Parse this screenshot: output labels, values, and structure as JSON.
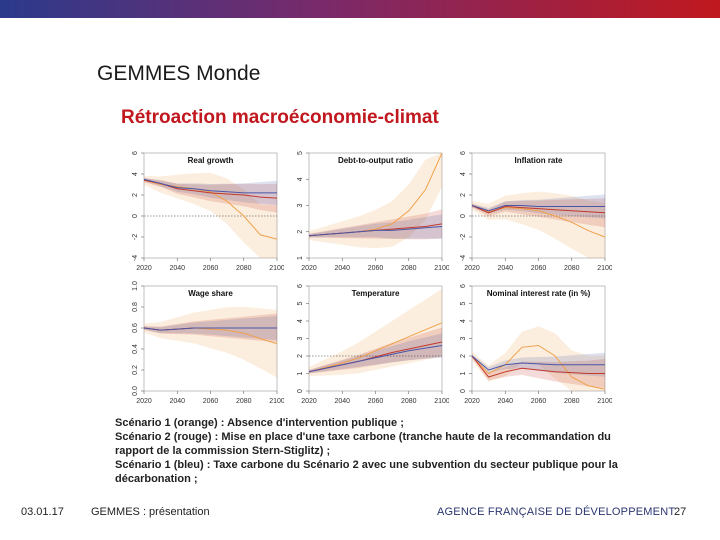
{
  "slide": {
    "title": "GEMMES Monde",
    "subtitle": "Rétroaction macroéconomie-climat",
    "caption_lines": [
      "Scénario 1 (orange) : Absence d'intervention publique ;",
      "Scénario 2 (rouge) : Mise en place d'une taxe carbone (tranche haute de la recommandation du",
      "rapport de la commission Stern-Stiglitz) ;",
      "Scénario 1 (bleu) : Taxe carbone du Scénario 2 avec une subvention du secteur publique pour la",
      "décarbonation ;"
    ],
    "footer": {
      "date": "03.01.17",
      "presentation": "GEMMES : présentation",
      "organization": "AGENCE FRANÇAISE DE DÉVELOPPEMENT",
      "page_number": "27"
    }
  },
  "colors": {
    "orange": "#f0a04a",
    "red": "#c0392b",
    "blue": "#4a56a8",
    "title_red": "#c0181e",
    "bar_start": "#2b3a8c",
    "bar_end": "#c0181e"
  },
  "chart_data": [
    {
      "type": "line",
      "title": "Real growth",
      "x": [
        2020,
        2030,
        2040,
        2050,
        2060,
        2070,
        2080,
        2090,
        2100
      ],
      "xticks": [
        "2020",
        "2040",
        "2060",
        "2080",
        "2100"
      ],
      "ylim": [
        -4,
        6
      ],
      "yticks": [
        "-4",
        "-2",
        "0",
        "2",
        "4",
        "6"
      ],
      "reference_line": 0,
      "series": [
        {
          "color": "orange",
          "values": [
            3.4,
            3.0,
            2.8,
            2.6,
            2.3,
            1.4,
            0.0,
            -1.8,
            -2.2
          ]
        },
        {
          "color": "red",
          "values": [
            3.4,
            3.1,
            2.6,
            2.4,
            2.2,
            2.1,
            2.0,
            1.8,
            1.7
          ]
        },
        {
          "color": "blue",
          "values": [
            3.5,
            3.1,
            2.7,
            2.6,
            2.4,
            2.3,
            2.2,
            2.2,
            2.2
          ]
        }
      ]
    },
    {
      "type": "line",
      "title": "Debt-to-output ratio",
      "x": [
        2020,
        2030,
        2040,
        2050,
        2060,
        2070,
        2080,
        2090,
        2100
      ],
      "xticks": [
        "2020",
        "2040",
        "2060",
        "2080",
        "2100"
      ],
      "ylim": [
        1,
        5
      ],
      "yticks": [
        "1",
        "2",
        "3",
        "4",
        "5"
      ],
      "series": [
        {
          "color": "orange",
          "values": [
            1.85,
            1.9,
            1.95,
            2.0,
            2.1,
            2.3,
            2.8,
            3.6,
            5.0
          ]
        },
        {
          "color": "red",
          "values": [
            1.85,
            1.9,
            1.95,
            2.0,
            2.05,
            2.1,
            2.15,
            2.2,
            2.3
          ]
        },
        {
          "color": "blue",
          "values": [
            1.85,
            1.9,
            1.95,
            2.0,
            2.05,
            2.05,
            2.1,
            2.15,
            2.2
          ]
        }
      ]
    },
    {
      "type": "line",
      "title": "Inflation rate",
      "x": [
        2020,
        2030,
        2040,
        2050,
        2060,
        2070,
        2080,
        2090,
        2100
      ],
      "xticks": [
        "2020",
        "2040",
        "2060",
        "2080",
        "2100"
      ],
      "ylim": [
        -4,
        6
      ],
      "yticks": [
        "-4",
        "-2",
        "0",
        "2",
        "4",
        "6"
      ],
      "reference_line": 0,
      "series": [
        {
          "color": "orange",
          "values": [
            1.0,
            0.4,
            0.8,
            0.7,
            0.5,
            0.0,
            -0.6,
            -1.4,
            -2.0
          ]
        },
        {
          "color": "red",
          "values": [
            1.0,
            0.3,
            0.9,
            0.8,
            0.7,
            0.6,
            0.5,
            0.4,
            0.3
          ]
        },
        {
          "color": "blue",
          "values": [
            1.0,
            0.5,
            1.0,
            1.0,
            0.9,
            0.9,
            0.9,
            0.9,
            0.9
          ]
        }
      ]
    },
    {
      "type": "line",
      "title": "Wage share",
      "x": [
        2020,
        2030,
        2040,
        2050,
        2060,
        2070,
        2080,
        2090,
        2100
      ],
      "xticks": [
        "2020",
        "2040",
        "2060",
        "2080",
        "2100"
      ],
      "ylim": [
        0,
        1
      ],
      "yticks": [
        "0.0",
        "0.2",
        "0.4",
        "0.6",
        "0.8",
        "1.0"
      ],
      "series": [
        {
          "color": "orange",
          "values": [
            0.6,
            0.58,
            0.59,
            0.6,
            0.59,
            0.58,
            0.55,
            0.5,
            0.45
          ]
        },
        {
          "color": "red",
          "values": [
            0.6,
            0.58,
            0.59,
            0.6,
            0.6,
            0.6,
            0.6,
            0.6,
            0.6
          ]
        },
        {
          "color": "blue",
          "values": [
            0.6,
            0.58,
            0.59,
            0.6,
            0.6,
            0.6,
            0.6,
            0.6,
            0.6
          ]
        }
      ]
    },
    {
      "type": "line",
      "title": "Temperature",
      "x": [
        2020,
        2030,
        2040,
        2050,
        2060,
        2070,
        2080,
        2090,
        2100
      ],
      "xticks": [
        "2020",
        "2040",
        "2060",
        "2080",
        "2100"
      ],
      "ylim": [
        0,
        6
      ],
      "yticks": [
        "0",
        "1",
        "2",
        "3",
        "4",
        "5",
        "6"
      ],
      "reference_line": 2,
      "series": [
        {
          "color": "orange",
          "values": [
            1.1,
            1.35,
            1.6,
            1.9,
            2.3,
            2.7,
            3.1,
            3.5,
            3.9
          ]
        },
        {
          "color": "red",
          "values": [
            1.1,
            1.3,
            1.5,
            1.7,
            1.95,
            2.2,
            2.4,
            2.6,
            2.8
          ]
        },
        {
          "color": "blue",
          "values": [
            1.1,
            1.3,
            1.5,
            1.7,
            1.9,
            2.1,
            2.3,
            2.45,
            2.6
          ]
        }
      ]
    },
    {
      "type": "line",
      "title": "Nominal interest rate (in %)",
      "x": [
        2020,
        2030,
        2040,
        2050,
        2060,
        2070,
        2080,
        2090,
        2100
      ],
      "xticks": [
        "2020",
        "2040",
        "2060",
        "2080",
        "2100"
      ],
      "ylim": [
        0,
        6
      ],
      "yticks": [
        "0",
        "1",
        "2",
        "3",
        "4",
        "5",
        "6"
      ],
      "series": [
        {
          "color": "orange",
          "values": [
            2.0,
            1.0,
            1.5,
            2.5,
            2.6,
            2.0,
            0.8,
            0.3,
            0.1
          ]
        },
        {
          "color": "red",
          "values": [
            2.0,
            0.8,
            1.1,
            1.3,
            1.2,
            1.1,
            1.05,
            1.0,
            1.0
          ]
        },
        {
          "color": "blue",
          "values": [
            2.0,
            1.2,
            1.5,
            1.6,
            1.55,
            1.5,
            1.5,
            1.5,
            1.5
          ]
        }
      ]
    }
  ]
}
